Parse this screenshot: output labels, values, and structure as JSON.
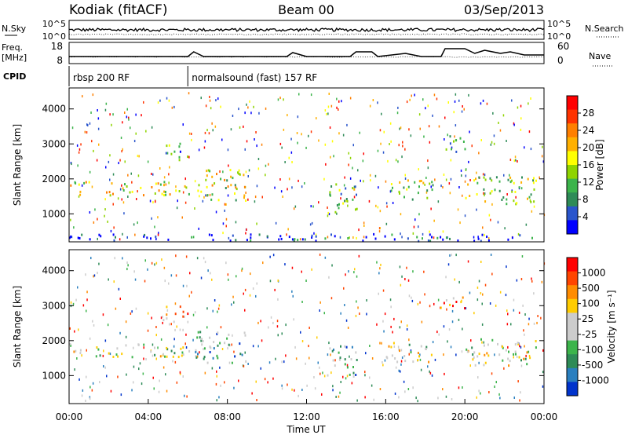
{
  "header": {
    "radar": "Kodiak (fitACF)",
    "beam": "Beam 00",
    "date": "03/Sep/2013"
  },
  "summary": {
    "nsky_label": "N.Sky",
    "nsky_ticks": [
      "10^5",
      "10^0"
    ],
    "nsearch_label": "N.Search",
    "nsearch_ticks": [
      "10^5",
      "10^0"
    ],
    "freq_label_1": "Freq.",
    "freq_label_2": "[MHz]",
    "freq_ticks": [
      "18",
      "8"
    ],
    "nave_label": "Nave",
    "nave_ticks": [
      "60",
      "0"
    ],
    "cpid_label": "CPID",
    "cpid_modes": [
      {
        "name": "rbsp 200 RF",
        "start_hour": 0
      },
      {
        "name": "normalsound (fast) 157 RF",
        "start_hour": 6
      }
    ]
  },
  "chart_data": [
    {
      "type": "heatmap",
      "name": "power",
      "ylabel": "Slant Range [km]",
      "yticks": [
        "4000",
        "3000",
        "2000",
        "1000"
      ],
      "ytick_values": [
        4000,
        3000,
        2000,
        1000
      ],
      "ylim": [
        200,
        4600
      ],
      "xlim": [
        0,
        24
      ],
      "colorbar": {
        "label": "Power [dB]",
        "ticks": [
          "28",
          "24",
          "20",
          "16",
          "12",
          "8",
          "4"
        ],
        "colors": [
          "#0000ff",
          "#2a55cc",
          "#2e8b57",
          "#3cb44b",
          "#8fd400",
          "#ffff00",
          "#ffb000",
          "#ff7f00",
          "#ff3300",
          "#ff0000"
        ]
      },
      "regions": [
        {
          "t0": 0.0,
          "t1": 6.1,
          "r0": 1550,
          "r1": 1950,
          "value": 0.55
        },
        {
          "t0": 6.3,
          "t1": 8.9,
          "r0": 1300,
          "r1": 2300,
          "value": 0.5
        },
        {
          "t0": 13.0,
          "t1": 14.6,
          "r0": 1000,
          "r1": 1900,
          "value": 0.4
        },
        {
          "t0": 16.0,
          "t1": 18.4,
          "r0": 1400,
          "r1": 2000,
          "value": 0.45
        },
        {
          "t0": 20.0,
          "t1": 23.6,
          "r0": 1300,
          "r1": 2100,
          "value": 0.45
        },
        {
          "t0": 4.7,
          "t1": 6.0,
          "r0": 2550,
          "r1": 3050,
          "value": 0.3
        },
        {
          "t0": 18.7,
          "t1": 20.0,
          "r0": 2800,
          "r1": 3300,
          "value": 0.35
        },
        {
          "t0": 0.0,
          "t1": 24.0,
          "r0": 250,
          "r1": 450,
          "value": 0.1
        }
      ]
    },
    {
      "type": "heatmap",
      "name": "velocity",
      "ylabel": "Slant Range [km]",
      "yticks": [
        "4000",
        "3000",
        "2000",
        "1000"
      ],
      "ytick_values": [
        4000,
        3000,
        2000,
        1000
      ],
      "ylim": [
        200,
        4600
      ],
      "xlim": [
        0,
        24
      ],
      "xticks": [
        "00:00",
        "04:00",
        "08:00",
        "12:00",
        "16:00",
        "20:00",
        "00:00"
      ],
      "xtick_values": [
        0,
        4,
        8,
        12,
        16,
        20,
        24
      ],
      "xlabel": "Time UT",
      "colorbar": {
        "label": "Velocity [m s⁻¹]",
        "ticks": [
          "1000",
          "500",
          "100",
          "25",
          "-25",
          "-100",
          "-500",
          "-1000"
        ],
        "colors": [
          "#0033cc",
          "#2a7fbf",
          "#2e8b57",
          "#3cb44b",
          "#cccccc",
          "#cccccc",
          "#ffcc00",
          "#ff8c00",
          "#ff4500",
          "#ff0000"
        ]
      },
      "regions": [
        {
          "t0": 0.0,
          "t1": 6.1,
          "r0": 1550,
          "r1": 1950,
          "value": 0.5
        },
        {
          "t0": 6.3,
          "t1": 8.9,
          "r0": 1300,
          "r1": 2300,
          "value": 0.3
        },
        {
          "t0": 13.0,
          "t1": 14.6,
          "r0": 1000,
          "r1": 1900,
          "value": 0.3
        },
        {
          "t0": 16.0,
          "t1": 18.4,
          "r0": 1400,
          "r1": 2000,
          "value": 0.5
        },
        {
          "t0": 20.0,
          "t1": 23.6,
          "r0": 1300,
          "r1": 2100,
          "value": 0.5
        },
        {
          "t0": 4.7,
          "t1": 6.0,
          "r0": 2550,
          "r1": 3050,
          "value": 0.7
        },
        {
          "t0": 18.7,
          "t1": 20.0,
          "r0": 2800,
          "r1": 3300,
          "value": 0.8
        }
      ]
    }
  ]
}
